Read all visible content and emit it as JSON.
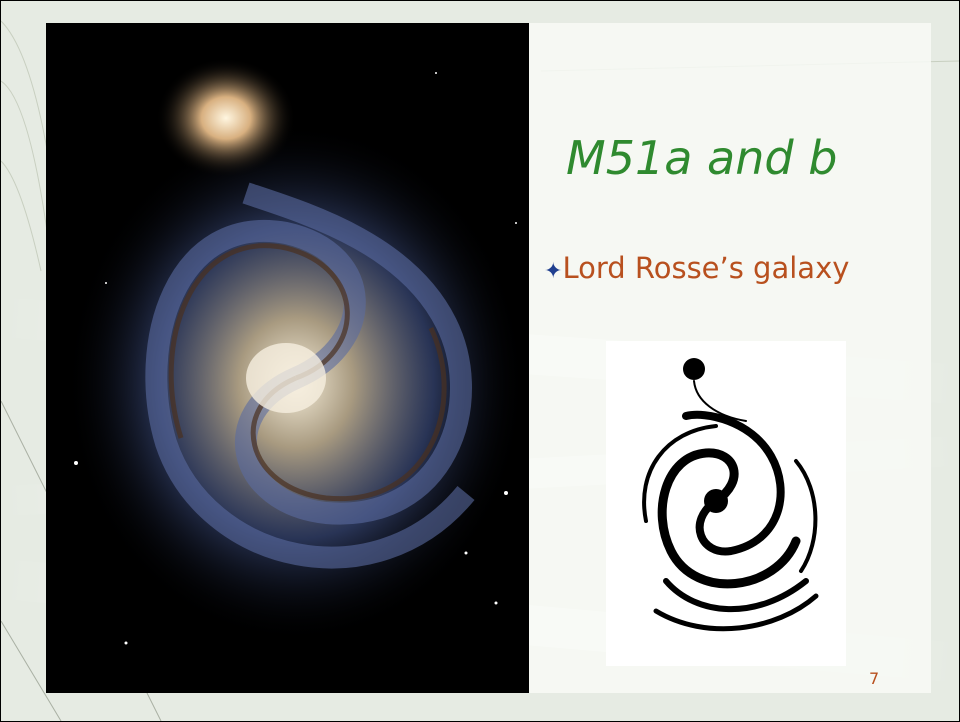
{
  "slide": {
    "title": "M51a and b",
    "bullets": [
      "Lord Rosse’s galaxy"
    ],
    "page_number": "7"
  }
}
